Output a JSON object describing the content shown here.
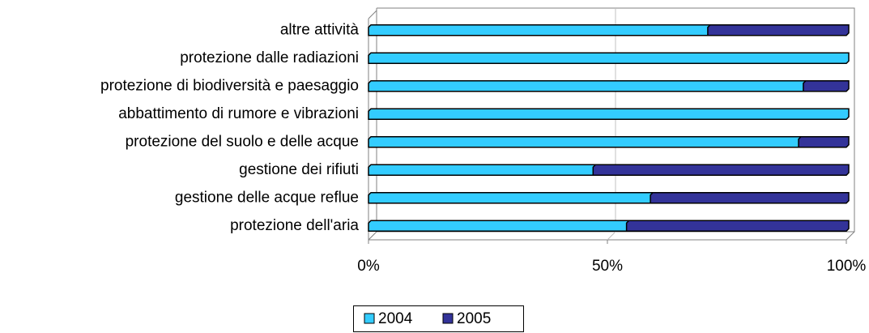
{
  "chart_data": {
    "type": "stacked_bar_horizontal",
    "categories": [
      "altre attività",
      "protezione dalle radiazioni",
      "protezione di biodiversità e paesaggio",
      "abbattimento di rumore e vibrazioni",
      "protezione del suolo e delle acque",
      "gestione dei rifiuti",
      "gestione delle acque reflue",
      "protezione dell'aria"
    ],
    "series": [
      {
        "name": "2004",
        "color": "#33ccff",
        "values": [
          71,
          100,
          91,
          100,
          90,
          47,
          59,
          54
        ]
      },
      {
        "name": "2005",
        "color": "#333399",
        "values": [
          29,
          0,
          9,
          0,
          10,
          53,
          41,
          46
        ]
      }
    ],
    "xlim": [
      0,
      100
    ],
    "xticks": [
      {
        "value": 0,
        "label": "0%"
      },
      {
        "value": 50,
        "label": "50%"
      },
      {
        "value": 100,
        "label": "100%"
      }
    ],
    "grid": true,
    "legend": "bottom"
  }
}
